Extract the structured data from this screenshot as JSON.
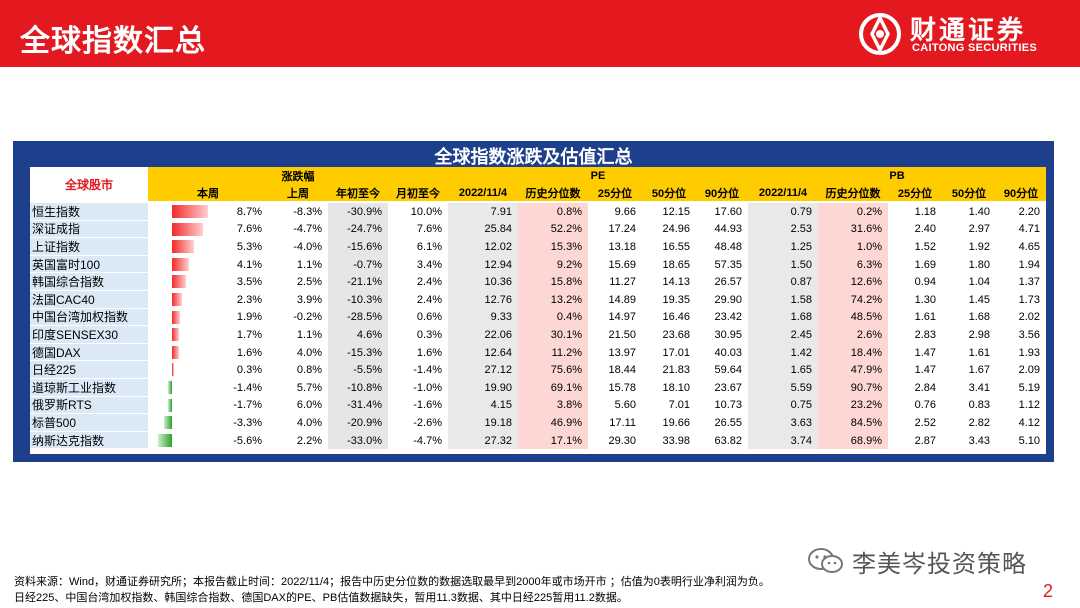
{
  "header": {
    "title": "全球指数汇总",
    "logo_cn": "财通证券",
    "logo_en": "CAITONG SECURITIES"
  },
  "table": {
    "title": "全球指数涨跌及估值汇总",
    "corner_label": "全球股市",
    "group_change": "涨跌幅",
    "group_pe": "PE",
    "group_pb": "PB",
    "change_cols": [
      "本周",
      "上周",
      "年初至今",
      "月初至今"
    ],
    "pe_cols": [
      "2022/11/4",
      "历史分位数",
      "25分位",
      "50分位",
      "90分位"
    ],
    "pb_cols": [
      "2022/11/4",
      "历史分位数",
      "25分位",
      "50分位",
      "90分位"
    ],
    "rows": [
      {
        "name": "恒生指数",
        "week": "8.7%",
        "week_value": 8.7,
        "last_week": "-8.3%",
        "ytd": "-30.9%",
        "mtd": "10.0%",
        "pe": "7.91",
        "pe_pct": "0.8%",
        "pe_25": "9.66",
        "pe_50": "12.15",
        "pe_90": "17.60",
        "pb": "0.79",
        "pb_pct": "0.2%",
        "pb_25": "1.18",
        "pb_50": "1.40",
        "pb_90": "2.20"
      },
      {
        "name": "深证成指",
        "week": "7.6%",
        "week_value": 7.6,
        "last_week": "-4.7%",
        "ytd": "-24.7%",
        "mtd": "7.6%",
        "pe": "25.84",
        "pe_pct": "52.2%",
        "pe_25": "17.24",
        "pe_50": "24.96",
        "pe_90": "44.93",
        "pb": "2.53",
        "pb_pct": "31.6%",
        "pb_25": "2.40",
        "pb_50": "2.97",
        "pb_90": "4.71"
      },
      {
        "name": "上证指数",
        "week": "5.3%",
        "week_value": 5.3,
        "last_week": "-4.0%",
        "ytd": "-15.6%",
        "mtd": "6.1%",
        "pe": "12.02",
        "pe_pct": "15.3%",
        "pe_25": "13.18",
        "pe_50": "16.55",
        "pe_90": "48.48",
        "pb": "1.25",
        "pb_pct": "1.0%",
        "pb_25": "1.52",
        "pb_50": "1.92",
        "pb_90": "4.65"
      },
      {
        "name": "英国富时100",
        "week": "4.1%",
        "week_value": 4.1,
        "last_week": "1.1%",
        "ytd": "-0.7%",
        "mtd": "3.4%",
        "pe": "12.94",
        "pe_pct": "9.2%",
        "pe_25": "15.69",
        "pe_50": "18.65",
        "pe_90": "57.35",
        "pb": "1.50",
        "pb_pct": "6.3%",
        "pb_25": "1.69",
        "pb_50": "1.80",
        "pb_90": "1.94"
      },
      {
        "name": "韩国综合指数",
        "week": "3.5%",
        "week_value": 3.5,
        "last_week": "2.5%",
        "ytd": "-21.1%",
        "mtd": "2.4%",
        "pe": "10.36",
        "pe_pct": "15.8%",
        "pe_25": "11.27",
        "pe_50": "14.13",
        "pe_90": "26.57",
        "pb": "0.87",
        "pb_pct": "12.6%",
        "pb_25": "0.94",
        "pb_50": "1.04",
        "pb_90": "1.37"
      },
      {
        "name": "法国CAC40",
        "week": "2.3%",
        "week_value": 2.3,
        "last_week": "3.9%",
        "ytd": "-10.3%",
        "mtd": "2.4%",
        "pe": "12.76",
        "pe_pct": "13.2%",
        "pe_25": "14.89",
        "pe_50": "19.35",
        "pe_90": "29.90",
        "pb": "1.58",
        "pb_pct": "74.2%",
        "pb_25": "1.30",
        "pb_50": "1.45",
        "pb_90": "1.73"
      },
      {
        "name": "中国台湾加权指数",
        "week": "1.9%",
        "week_value": 1.9,
        "last_week": "-0.2%",
        "ytd": "-28.5%",
        "mtd": "0.6%",
        "pe": "9.33",
        "pe_pct": "0.4%",
        "pe_25": "14.97",
        "pe_50": "16.46",
        "pe_90": "23.42",
        "pb": "1.68",
        "pb_pct": "48.5%",
        "pb_25": "1.61",
        "pb_50": "1.68",
        "pb_90": "2.02"
      },
      {
        "name": "印度SENSEX30",
        "week": "1.7%",
        "week_value": 1.7,
        "last_week": "1.1%",
        "ytd": "4.6%",
        "mtd": "0.3%",
        "pe": "22.06",
        "pe_pct": "30.1%",
        "pe_25": "21.50",
        "pe_50": "23.68",
        "pe_90": "30.95",
        "pb": "2.45",
        "pb_pct": "2.6%",
        "pb_25": "2.83",
        "pb_50": "2.98",
        "pb_90": "3.56"
      },
      {
        "name": "德国DAX",
        "week": "1.6%",
        "week_value": 1.6,
        "last_week": "4.0%",
        "ytd": "-15.3%",
        "mtd": "1.6%",
        "pe": "12.64",
        "pe_pct": "11.2%",
        "pe_25": "13.97",
        "pe_50": "17.01",
        "pe_90": "40.03",
        "pb": "1.42",
        "pb_pct": "18.4%",
        "pb_25": "1.47",
        "pb_50": "1.61",
        "pb_90": "1.93"
      },
      {
        "name": "日经225",
        "week": "0.3%",
        "week_value": 0.3,
        "last_week": "0.8%",
        "ytd": "-5.5%",
        "mtd": "-1.4%",
        "pe": "27.12",
        "pe_pct": "75.6%",
        "pe_25": "18.44",
        "pe_50": "21.83",
        "pe_90": "59.64",
        "pb": "1.65",
        "pb_pct": "47.9%",
        "pb_25": "1.47",
        "pb_50": "1.67",
        "pb_90": "2.09"
      },
      {
        "name": "道琼斯工业指数",
        "week": "-1.4%",
        "week_value": -1.4,
        "last_week": "5.7%",
        "ytd": "-10.8%",
        "mtd": "-1.0%",
        "pe": "19.90",
        "pe_pct": "69.1%",
        "pe_25": "15.78",
        "pe_50": "18.10",
        "pe_90": "23.67",
        "pb": "5.59",
        "pb_pct": "90.7%",
        "pb_25": "2.84",
        "pb_50": "3.41",
        "pb_90": "5.19"
      },
      {
        "name": "俄罗斯RTS",
        "week": "-1.7%",
        "week_value": -1.7,
        "last_week": "6.0%",
        "ytd": "-31.4%",
        "mtd": "-1.6%",
        "pe": "4.15",
        "pe_pct": "3.8%",
        "pe_25": "5.60",
        "pe_50": "7.01",
        "pe_90": "10.73",
        "pb": "0.75",
        "pb_pct": "23.2%",
        "pb_25": "0.76",
        "pb_50": "0.83",
        "pb_90": "1.12"
      },
      {
        "name": "标普500",
        "week": "-3.3%",
        "week_value": -3.3,
        "last_week": "4.0%",
        "ytd": "-20.9%",
        "mtd": "-2.6%",
        "pe": "19.18",
        "pe_pct": "46.9%",
        "pe_25": "17.11",
        "pe_50": "19.66",
        "pe_90": "26.55",
        "pb": "3.63",
        "pb_pct": "84.5%",
        "pb_25": "2.52",
        "pb_50": "2.82",
        "pb_90": "4.12"
      },
      {
        "name": "纳斯达克指数",
        "week": "-5.6%",
        "week_value": -5.6,
        "last_week": "2.2%",
        "ytd": "-33.0%",
        "mtd": "-4.7%",
        "pe": "27.32",
        "pe_pct": "17.1%",
        "pe_25": "29.30",
        "pe_50": "33.98",
        "pe_90": "63.82",
        "pb": "3.74",
        "pb_pct": "68.9%",
        "pb_25": "2.87",
        "pb_50": "3.43",
        "pb_90": "5.10"
      }
    ]
  },
  "footer": {
    "line1": "资料来源：Wind，财通证券研究所；本报告截止时间：2022/11/4；报告中历史分位数的数据选取最早到2000年或市场开市 ；估值为0表明行业净利润为负。",
    "line2": "日经225、中国台湾加权指数、韩国综合指数、德国DAX的PE、PB估值数据缺失，暂用11.3数据、其中日经225暂用11.2数据。"
  },
  "watermark": "李美岑投资策略",
  "page_number": "2",
  "colors": {
    "brand_red": "#e3191f",
    "frame_blue": "#1d3f8c",
    "header_yellow": "#ffcc00",
    "positive_bar": "#f22a2a",
    "negative_bar": "#2ca02c"
  }
}
